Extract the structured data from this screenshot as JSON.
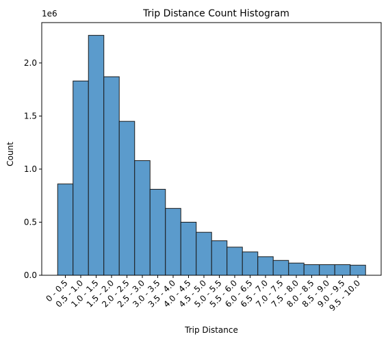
{
  "chart_data": {
    "type": "bar",
    "title": "Trip Distance Count Histogram",
    "xlabel": "Trip Distance",
    "ylabel": "Count",
    "y_offset_label": "1e6",
    "y_scale": 1000000,
    "ylim": [
      0,
      2.38
    ],
    "yticks": [
      0.0,
      0.5,
      1.0,
      1.5,
      2.0
    ],
    "categories": [
      "0 - 0.5",
      "0.5 - 1.0",
      "1.0 - 1.5",
      "1.5 - 2.0",
      "2.0 - 2.5",
      "2.5 - 3.0",
      "3.0 - 3.5",
      "3.5 - 4.0",
      "4.0 - 4.5",
      "4.5 - 5.0",
      "5.0 - 5.5",
      "5.5 - 6.0",
      "6.0 - 6.5",
      "6.5 - 7.0",
      "7.0 - 7.5",
      "7.5 - 8.0",
      "8.0 - 8.5",
      "8.5 - 9.0",
      "9.0 - 9.5",
      "9.5 - 10.0"
    ],
    "values": [
      860000,
      1830000,
      2260000,
      1870000,
      1450000,
      1080000,
      810000,
      630000,
      500000,
      405000,
      325000,
      265000,
      220000,
      175000,
      140000,
      115000,
      100000,
      100000,
      100000,
      95000
    ],
    "grid": false,
    "colors": {
      "bar_fill": "#5b9bcc",
      "bar_edge": "#1a1a1a"
    }
  }
}
